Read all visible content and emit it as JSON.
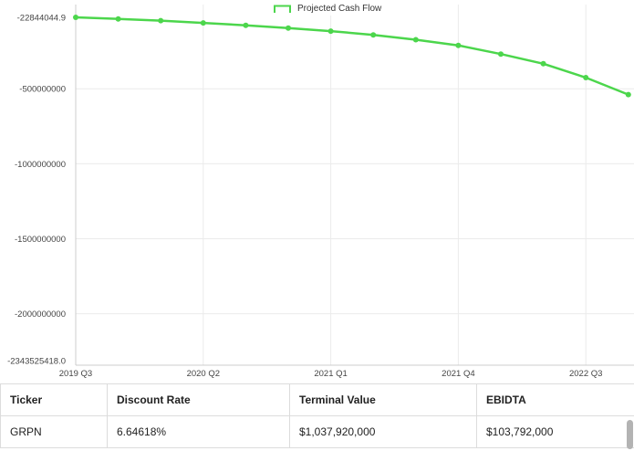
{
  "chart_data": {
    "type": "line",
    "title": "",
    "legend_label": "Projected Cash Flow",
    "legend_position": "top-center",
    "series_color": "#4cd64c",
    "grid": true,
    "x_unit": "quarter",
    "x_tick_labels": [
      "2019 Q3",
      "2020 Q2",
      "2021 Q1",
      "2021 Q4",
      "2022 Q3"
    ],
    "x_tick_indices": [
      0,
      3,
      6,
      9,
      12
    ],
    "y_axis": {
      "max": -22844044.9,
      "min": -2343525418.0,
      "tick_labels": [
        "-22844044.9",
        "-500000000",
        "-1000000000",
        "-1500000000",
        "-2000000000",
        "-2343525418.0"
      ],
      "tick_values": [
        -22844044.9,
        -500000000,
        -1000000000,
        -1500000000,
        -2000000000,
        -2343525418.0
      ]
    },
    "series": [
      {
        "name": "Projected Cash Flow",
        "values": [
          -22844044.9,
          -33000000,
          -45000000,
          -60000000,
          -76000000,
          -94000000,
          -115000000,
          -140000000,
          -172000000,
          -210000000,
          -268000000,
          -332000000,
          -425000000,
          -538000000
        ]
      }
    ]
  },
  "table": {
    "headers": [
      "Ticker",
      "Discount Rate",
      "Terminal Value",
      "EBIDTA"
    ],
    "rows": [
      [
        "GRPN",
        "6.64618%",
        "$1,037,920,000",
        "$103,792,000"
      ]
    ]
  }
}
